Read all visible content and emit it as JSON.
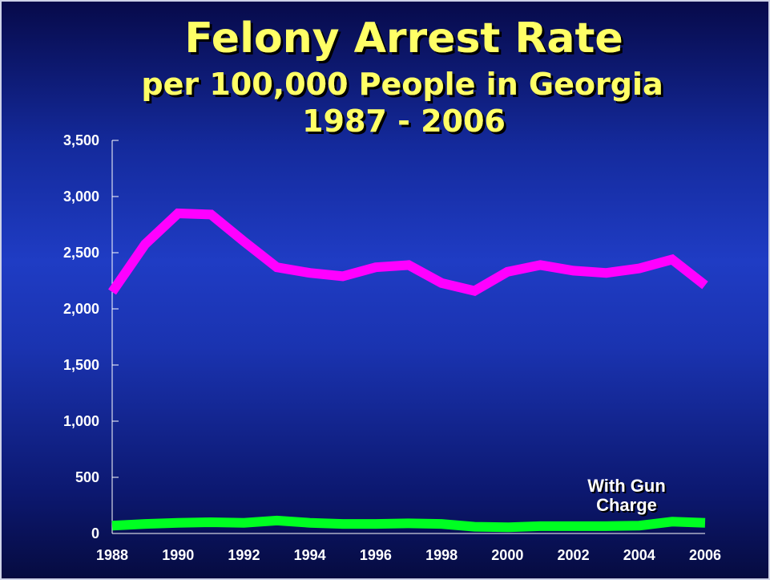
{
  "chart_data": {
    "type": "line",
    "title": "Felony Arrest Rate",
    "subtitle": [
      "per 100,000 People in Georgia",
      "1987 - 2006"
    ],
    "x": [
      1988,
      1989,
      1990,
      1991,
      1992,
      1993,
      1994,
      1995,
      1996,
      1997,
      1998,
      1999,
      2000,
      2001,
      2002,
      2003,
      2004,
      2005,
      2006
    ],
    "xlim": [
      1988,
      2006
    ],
    "xticks": [
      1988,
      1990,
      1992,
      1994,
      1996,
      1998,
      2000,
      2002,
      2004,
      2006
    ],
    "ylim": [
      0,
      3500
    ],
    "yticks": [
      0,
      {
        "value": 500,
        "label": "500"
      },
      {
        "value": 1000,
        "label": "1,000"
      },
      {
        "value": 1500,
        "label": "1,500"
      },
      {
        "value": 2000,
        "label": "2,000"
      },
      {
        "value": 2500,
        "label": "2,500"
      },
      {
        "value": 3000,
        "label": "3,000"
      },
      {
        "value": 3500,
        "label": "3,500"
      }
    ],
    "grid": false,
    "series": [
      {
        "color": "#ff00ff",
        "values": [
          2150,
          2575,
          2850,
          2840,
          2600,
          2370,
          2320,
          2290,
          2370,
          2390,
          2230,
          2160,
          2330,
          2390,
          2340,
          2320,
          2360,
          2440,
          2210
        ]
      },
      {
        "name": "With Gun Charge",
        "color": "#00ff22",
        "values": [
          70,
          85,
          95,
          100,
          95,
          115,
          95,
          85,
          85,
          90,
          85,
          60,
          55,
          65,
          65,
          65,
          70,
          105,
          95
        ]
      }
    ]
  }
}
